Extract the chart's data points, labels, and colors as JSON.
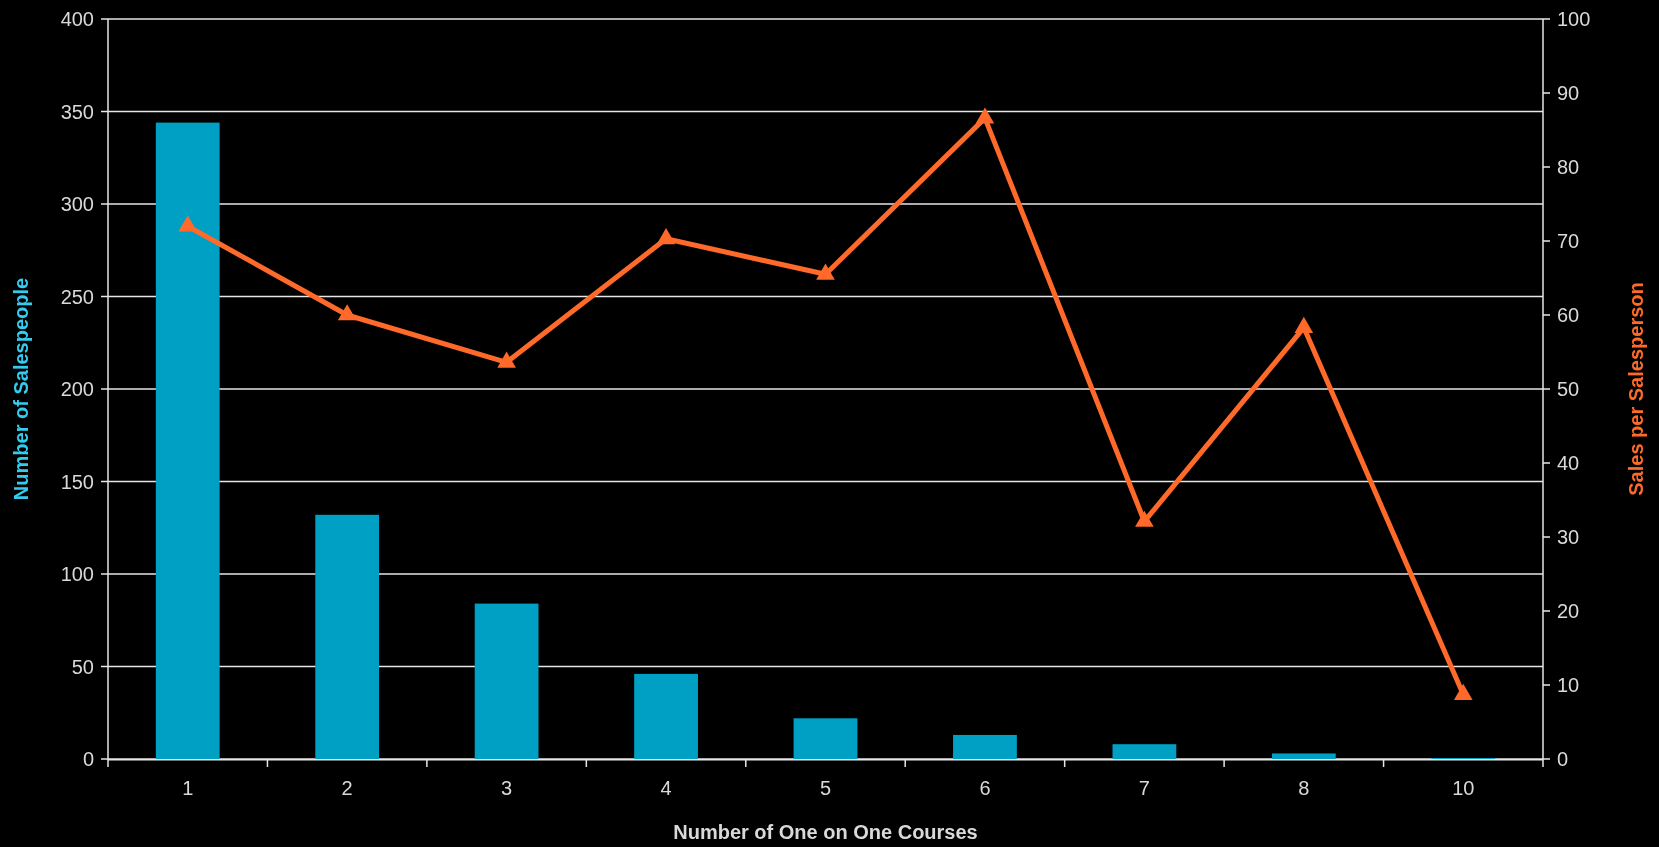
{
  "chart_data": {
    "type": "bar",
    "xlabel": "Number of One on One Courses",
    "ylabel": "Number of Salespeople",
    "y2label": "Sales per Salesperson",
    "categories": [
      "1",
      "2",
      "3",
      "4",
      "5",
      "6",
      "7",
      "8",
      "10"
    ],
    "series": [
      {
        "color": "#00a0c4",
        "values": [
          344,
          132,
          84,
          46,
          22,
          13,
          8,
          3,
          0.5
        ]
      },
      {
        "type": "line",
        "axis": "y2",
        "color": "#ff6a2a",
        "values": [
          72,
          60,
          53.6,
          70.3,
          65.5,
          86.6,
          32.1,
          58.3,
          8.7
        ]
      }
    ],
    "ylim": [
      0,
      400
    ],
    "yticks": [
      0,
      50,
      100,
      150,
      200,
      250,
      300,
      350,
      400
    ],
    "y2lim": [
      0,
      100
    ],
    "y2ticks": [
      0,
      10,
      20,
      30,
      40,
      50,
      60,
      70,
      80,
      90,
      100
    ],
    "grid": "y",
    "marker": "triangle",
    "line_style": "solid"
  }
}
